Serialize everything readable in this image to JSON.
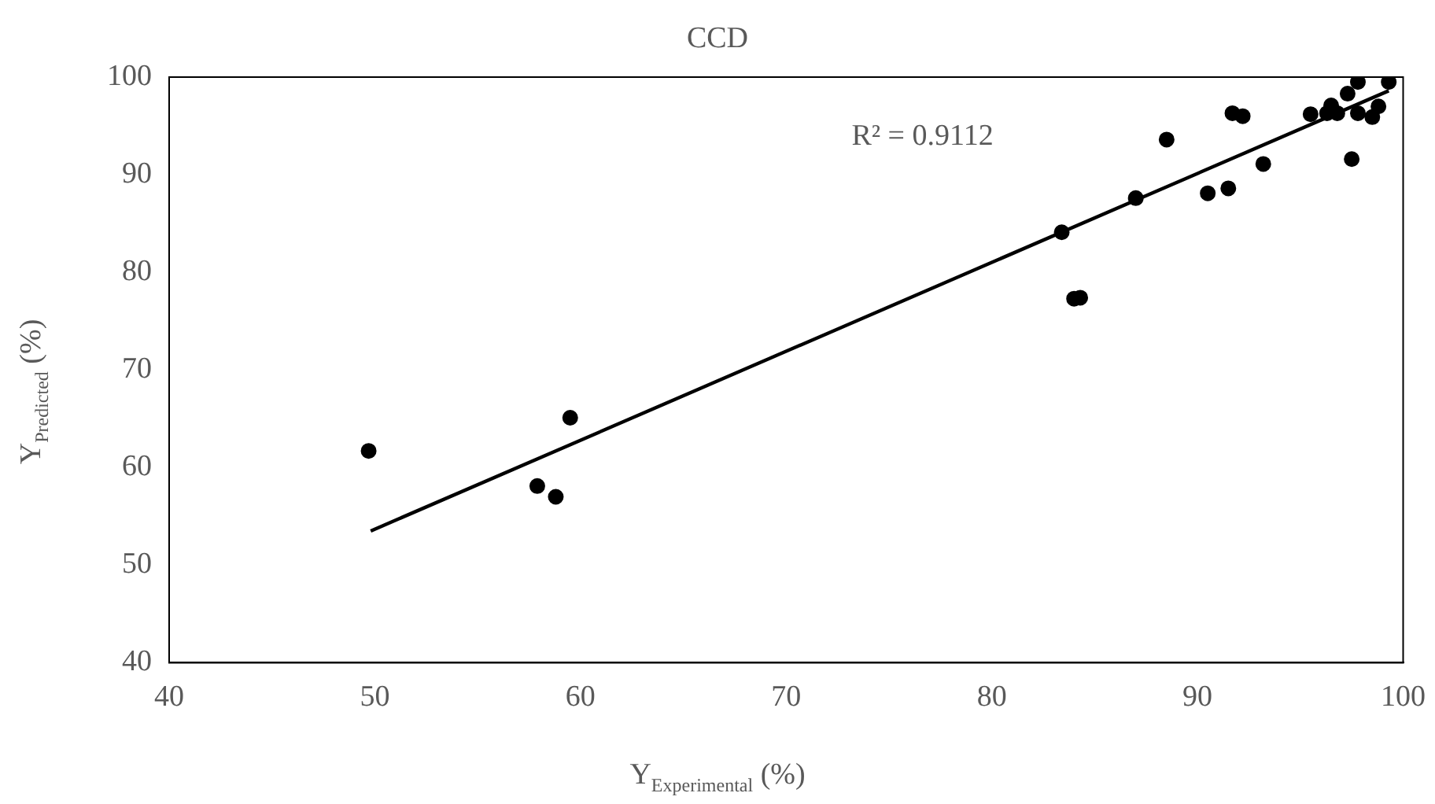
{
  "chart_data": {
    "type": "scatter",
    "title": "CCD",
    "xlabel": "Y$_{Experimental}$ (%)",
    "ylabel": "Y$_{Predicted}$ (%)",
    "xlim": [
      40,
      100
    ],
    "xticks": [
      40,
      50,
      60,
      70,
      80,
      90,
      100
    ],
    "ylim": [
      40,
      100
    ],
    "yticks": [
      40,
      50,
      60,
      70,
      80,
      90,
      100
    ],
    "grid": false,
    "legend": false,
    "marker": "circle",
    "annotations": [
      "R² = 0.9112"
    ],
    "series": [
      {
        "color": "#000000",
        "x": [
          49.7,
          57.9,
          58.8,
          59.5,
          83.4,
          84.0,
          84.3,
          87.0,
          88.5,
          90.5,
          91.5,
          91.7,
          92.2,
          93.2,
          95.5,
          96.3,
          96.5,
          96.8,
          97.2,
          97.3,
          97.5,
          97.8,
          97.8,
          98.5,
          98.8,
          99.3
        ],
        "values": [
          61.7,
          58.1,
          57.0,
          65.1,
          84.1,
          77.3,
          77.4,
          87.6,
          93.6,
          88.1,
          88.6,
          96.3,
          96.0,
          91.1,
          96.2,
          96.3,
          97.1,
          96.3,
          null,
          98.3,
          91.6,
          96.3,
          99.5,
          95.9,
          97.0,
          99.5
        ]
      },
      {
        "type": "line",
        "color": "#000000",
        "x": [
          49.8,
          99.3
        ],
        "values": [
          53.5,
          98.6
        ],
        "marker": "none"
      }
    ]
  }
}
